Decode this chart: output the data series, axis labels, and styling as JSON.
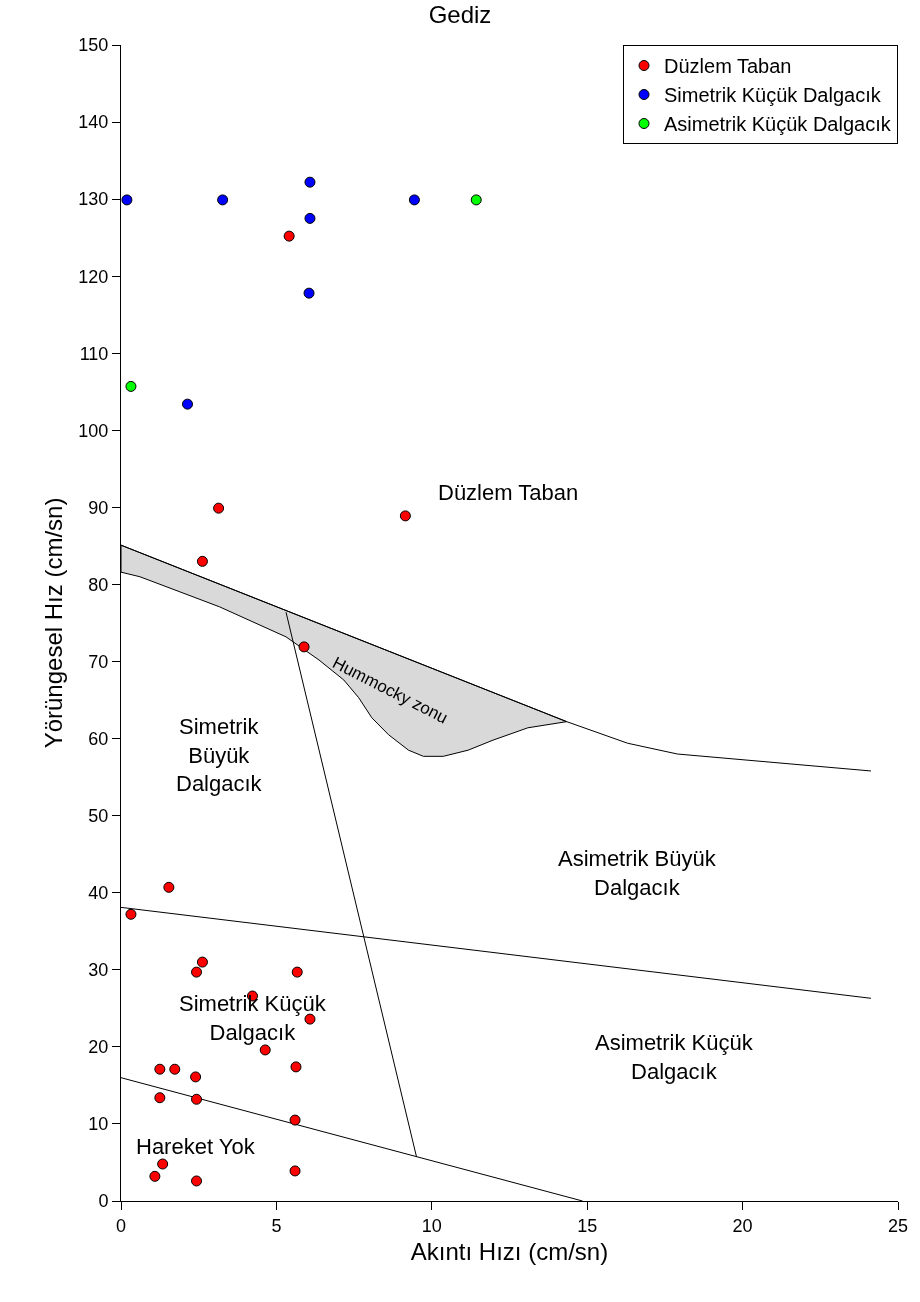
{
  "chart_data": {
    "type": "scatter",
    "title": "Gediz",
    "xlabel": "Akıntı Hızı (cm/sn)",
    "ylabel": "Yörüngesel Hız (cm/sn)",
    "xlim": [
      0,
      25
    ],
    "ylim": [
      0,
      150
    ],
    "xticks": [
      0,
      5,
      10,
      15,
      20,
      25
    ],
    "yticks": [
      0,
      10,
      20,
      30,
      40,
      50,
      60,
      70,
      80,
      90,
      100,
      110,
      120,
      130,
      140,
      150
    ],
    "legend": "top right",
    "marker": "circle",
    "series": [
      {
        "type": "area",
        "marker": "none",
        "color": "#d9d9d9",
        "x": [
          0,
          14.34,
          13.09,
          11.97,
          11.17,
          10.37,
          9.73,
          9.25,
          8.61,
          8.07,
          7.65,
          7.17,
          6.37,
          5.31,
          3.17,
          0.61,
          0,
          0
        ],
        "values": [
          85.1,
          62.2,
          61.4,
          59.8,
          58.5,
          57.7,
          57.7,
          58.5,
          60.5,
          62.7,
          65.3,
          67.6,
          70.2,
          73.2,
          77.1,
          81.0,
          81.6,
          85.1
        ]
      },
      {
        "type": "line",
        "marker": "none",
        "color": "#000000",
        "x": [
          0,
          14.34,
          16.3,
          17.9,
          24.13
        ],
        "values": [
          85.1,
          62.2,
          59.4,
          58.0,
          55.8
        ]
      },
      {
        "type": "line",
        "marker": "none",
        "color": "#000000",
        "x": [
          5.31,
          9.51
        ],
        "values": [
          76.4,
          5.7
        ]
      },
      {
        "type": "line",
        "marker": "none",
        "color": "#000000",
        "x": [
          0,
          24.13
        ],
        "values": [
          38.1,
          26.3
        ]
      },
      {
        "type": "line",
        "marker": "none",
        "color": "#000000",
        "x": [
          0,
          14.85
        ],
        "values": [
          16.0,
          0
        ]
      },
      {
        "name": "Düzlem Taban",
        "color": "#ff0000",
        "x": [
          5.41,
          3.14,
          9.15,
          2.62,
          5.89,
          1.54,
          0.32,
          2.62,
          2.43,
          5.67,
          4.23,
          6.08,
          4.64,
          1.25,
          1.73,
          5.63,
          2.4,
          1.25,
          2.43,
          5.6,
          1.34,
          1.09,
          5.6,
          2.43
        ],
        "values": [
          125.2,
          89.9,
          88.9,
          83.0,
          71.9,
          40.7,
          37.2,
          31.0,
          29.7,
          29.7,
          26.6,
          23.6,
          19.6,
          17.1,
          17.1,
          17.4,
          16.1,
          13.4,
          13.2,
          10.5,
          4.8,
          3.2,
          3.9,
          2.6
        ]
      },
      {
        "name": "Simetrik Küçük Dalgacık",
        "color": "#0000ff",
        "x": [
          0.19,
          3.27,
          6.08,
          6.08,
          9.44,
          6.05,
          2.14
        ],
        "values": [
          129.9,
          129.9,
          132.2,
          127.5,
          129.9,
          117.8,
          103.4
        ]
      },
      {
        "name": "Asimetrik Küçük Dalgacık",
        "color": "#00ff00",
        "x": [
          11.43,
          0.32
        ],
        "values": [
          129.9,
          105.7
        ]
      }
    ],
    "annotations": [
      "Düzlem Taban",
      "Hummocky zonu",
      "Simetrik\nBüyük\nDalgacık",
      "Asimetrik Büyük\nDalgacık",
      "Simetrik Küçük\nDalgacık",
      "Asimetrik Küçük\nDalgacık",
      "Hareket Yok"
    ]
  }
}
